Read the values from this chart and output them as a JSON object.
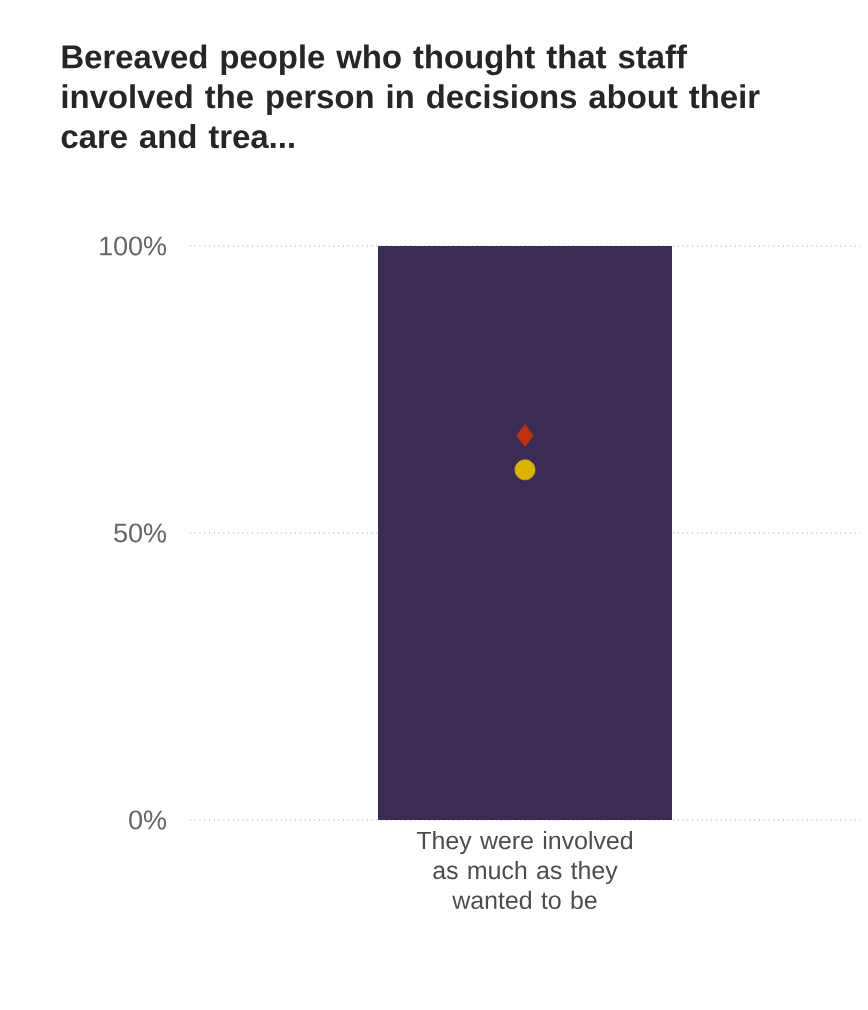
{
  "chart_data": {
    "type": "bar",
    "title": "Bereaved people who thought that staff involved the person in decisions about their care and trea...",
    "categories": [
      "They were involved as much as they wanted to be"
    ],
    "series": [
      {
        "color": "#3b2c55",
        "values": [
          100
        ]
      },
      {
        "type": "scatter",
        "color": "#c0300f",
        "marker": "diamond",
        "x": [
          "They were involved as much as they wanted to be"
        ],
        "values": [
          67
        ]
      },
      {
        "type": "scatter",
        "color": "#d9b300",
        "marker": "circle",
        "x": [
          "They were involved as much as they wanted to be"
        ],
        "values": [
          61
        ]
      }
    ],
    "ylim": [
      0,
      100
    ],
    "yticks": [
      {
        "value": 0,
        "label": "0%"
      },
      {
        "value": 50,
        "label": "50%"
      },
      {
        "value": 100,
        "label": "100%"
      }
    ],
    "grid": "y"
  }
}
